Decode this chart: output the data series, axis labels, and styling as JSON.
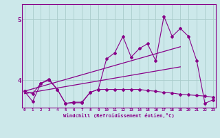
{
  "xlabel": "Windchill (Refroidissement éolien,°C)",
  "background_color": "#cce8ea",
  "line_color": "#880088",
  "grid_color": "#aacccc",
  "x_ticks": [
    0,
    1,
    2,
    3,
    4,
    5,
    6,
    7,
    8,
    9,
    10,
    11,
    12,
    13,
    14,
    15,
    16,
    17,
    18,
    19,
    20,
    21,
    22,
    23
  ],
  "y_ticks": [
    4,
    5
  ],
  "ylim": [
    3.55,
    5.25
  ],
  "xlim": [
    -0.3,
    23.3
  ],
  "series_zigzag": {
    "x": [
      0,
      1,
      2,
      3,
      4,
      5,
      6,
      7,
      8,
      9,
      10,
      11,
      12,
      13,
      14,
      15,
      16,
      17,
      18,
      19,
      20,
      21,
      22,
      23
    ],
    "y": [
      3.82,
      3.65,
      3.95,
      4.0,
      3.85,
      3.62,
      3.63,
      3.63,
      3.8,
      3.85,
      4.35,
      4.45,
      4.72,
      4.38,
      4.52,
      4.6,
      4.32,
      5.05,
      4.72,
      4.85,
      4.72,
      4.32,
      3.62,
      3.68
    ]
  },
  "series_flat": {
    "x": [
      0,
      1,
      2,
      3,
      4,
      5,
      6,
      7,
      8,
      9,
      10,
      11,
      12,
      13,
      14,
      15,
      16,
      17,
      18,
      19,
      20,
      21,
      22,
      23
    ],
    "y": [
      3.82,
      3.78,
      3.95,
      4.02,
      3.85,
      3.62,
      3.64,
      3.64,
      3.8,
      3.85,
      3.85,
      3.85,
      3.85,
      3.85,
      3.85,
      3.83,
      3.82,
      3.8,
      3.79,
      3.77,
      3.76,
      3.75,
      3.74,
      3.72
    ]
  },
  "trend_upper": {
    "x": [
      0,
      19
    ],
    "y": [
      3.82,
      4.55
    ]
  },
  "trend_lower": {
    "x": [
      0,
      19
    ],
    "y": [
      3.78,
      4.22
    ]
  }
}
